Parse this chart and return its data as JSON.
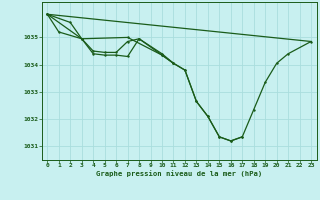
{
  "title": "Graphe pression niveau de la mer (hPa)",
  "background_color": "#c8f0f0",
  "grid_color": "#aadddd",
  "line_color": "#1a5c1a",
  "marker_color": "#1a5c1a",
  "xlim": [
    -0.5,
    23.5
  ],
  "ylim": [
    1030.5,
    1036.3
  ],
  "yticks": [
    1031,
    1032,
    1033,
    1034,
    1035
  ],
  "xticks": [
    0,
    1,
    2,
    3,
    4,
    5,
    6,
    7,
    8,
    9,
    10,
    11,
    12,
    13,
    14,
    15,
    16,
    17,
    18,
    19,
    20,
    21,
    22,
    23
  ],
  "line1_x": [
    0,
    1,
    3,
    4,
    5,
    6,
    7,
    8,
    10,
    11
  ],
  "line1_y": [
    1035.85,
    1035.2,
    1034.95,
    1034.5,
    1034.45,
    1034.45,
    1034.85,
    1034.95,
    1034.4,
    1034.05
  ],
  "line2_x": [
    0,
    2,
    3,
    4,
    5,
    6,
    7,
    8,
    10,
    11,
    12,
    13,
    14,
    15,
    16,
    17
  ],
  "line2_y": [
    1035.85,
    1035.55,
    1034.95,
    1034.4,
    1034.35,
    1034.35,
    1034.3,
    1034.95,
    1034.35,
    1034.05,
    1033.8,
    1032.65,
    1032.1,
    1031.35,
    1031.2,
    1031.35
  ],
  "line3_x": [
    0,
    3,
    7,
    10,
    11,
    12,
    13,
    14,
    15,
    16,
    17,
    18,
    19,
    20,
    21,
    23
  ],
  "line3_y": [
    1035.85,
    1034.95,
    1035.0,
    1034.35,
    1034.05,
    1033.8,
    1032.65,
    1032.1,
    1031.35,
    1031.2,
    1031.35,
    1032.35,
    1033.35,
    1034.05,
    1034.4,
    1034.85
  ],
  "line4_x": [
    0,
    23
  ],
  "line4_y": [
    1035.85,
    1034.85
  ]
}
